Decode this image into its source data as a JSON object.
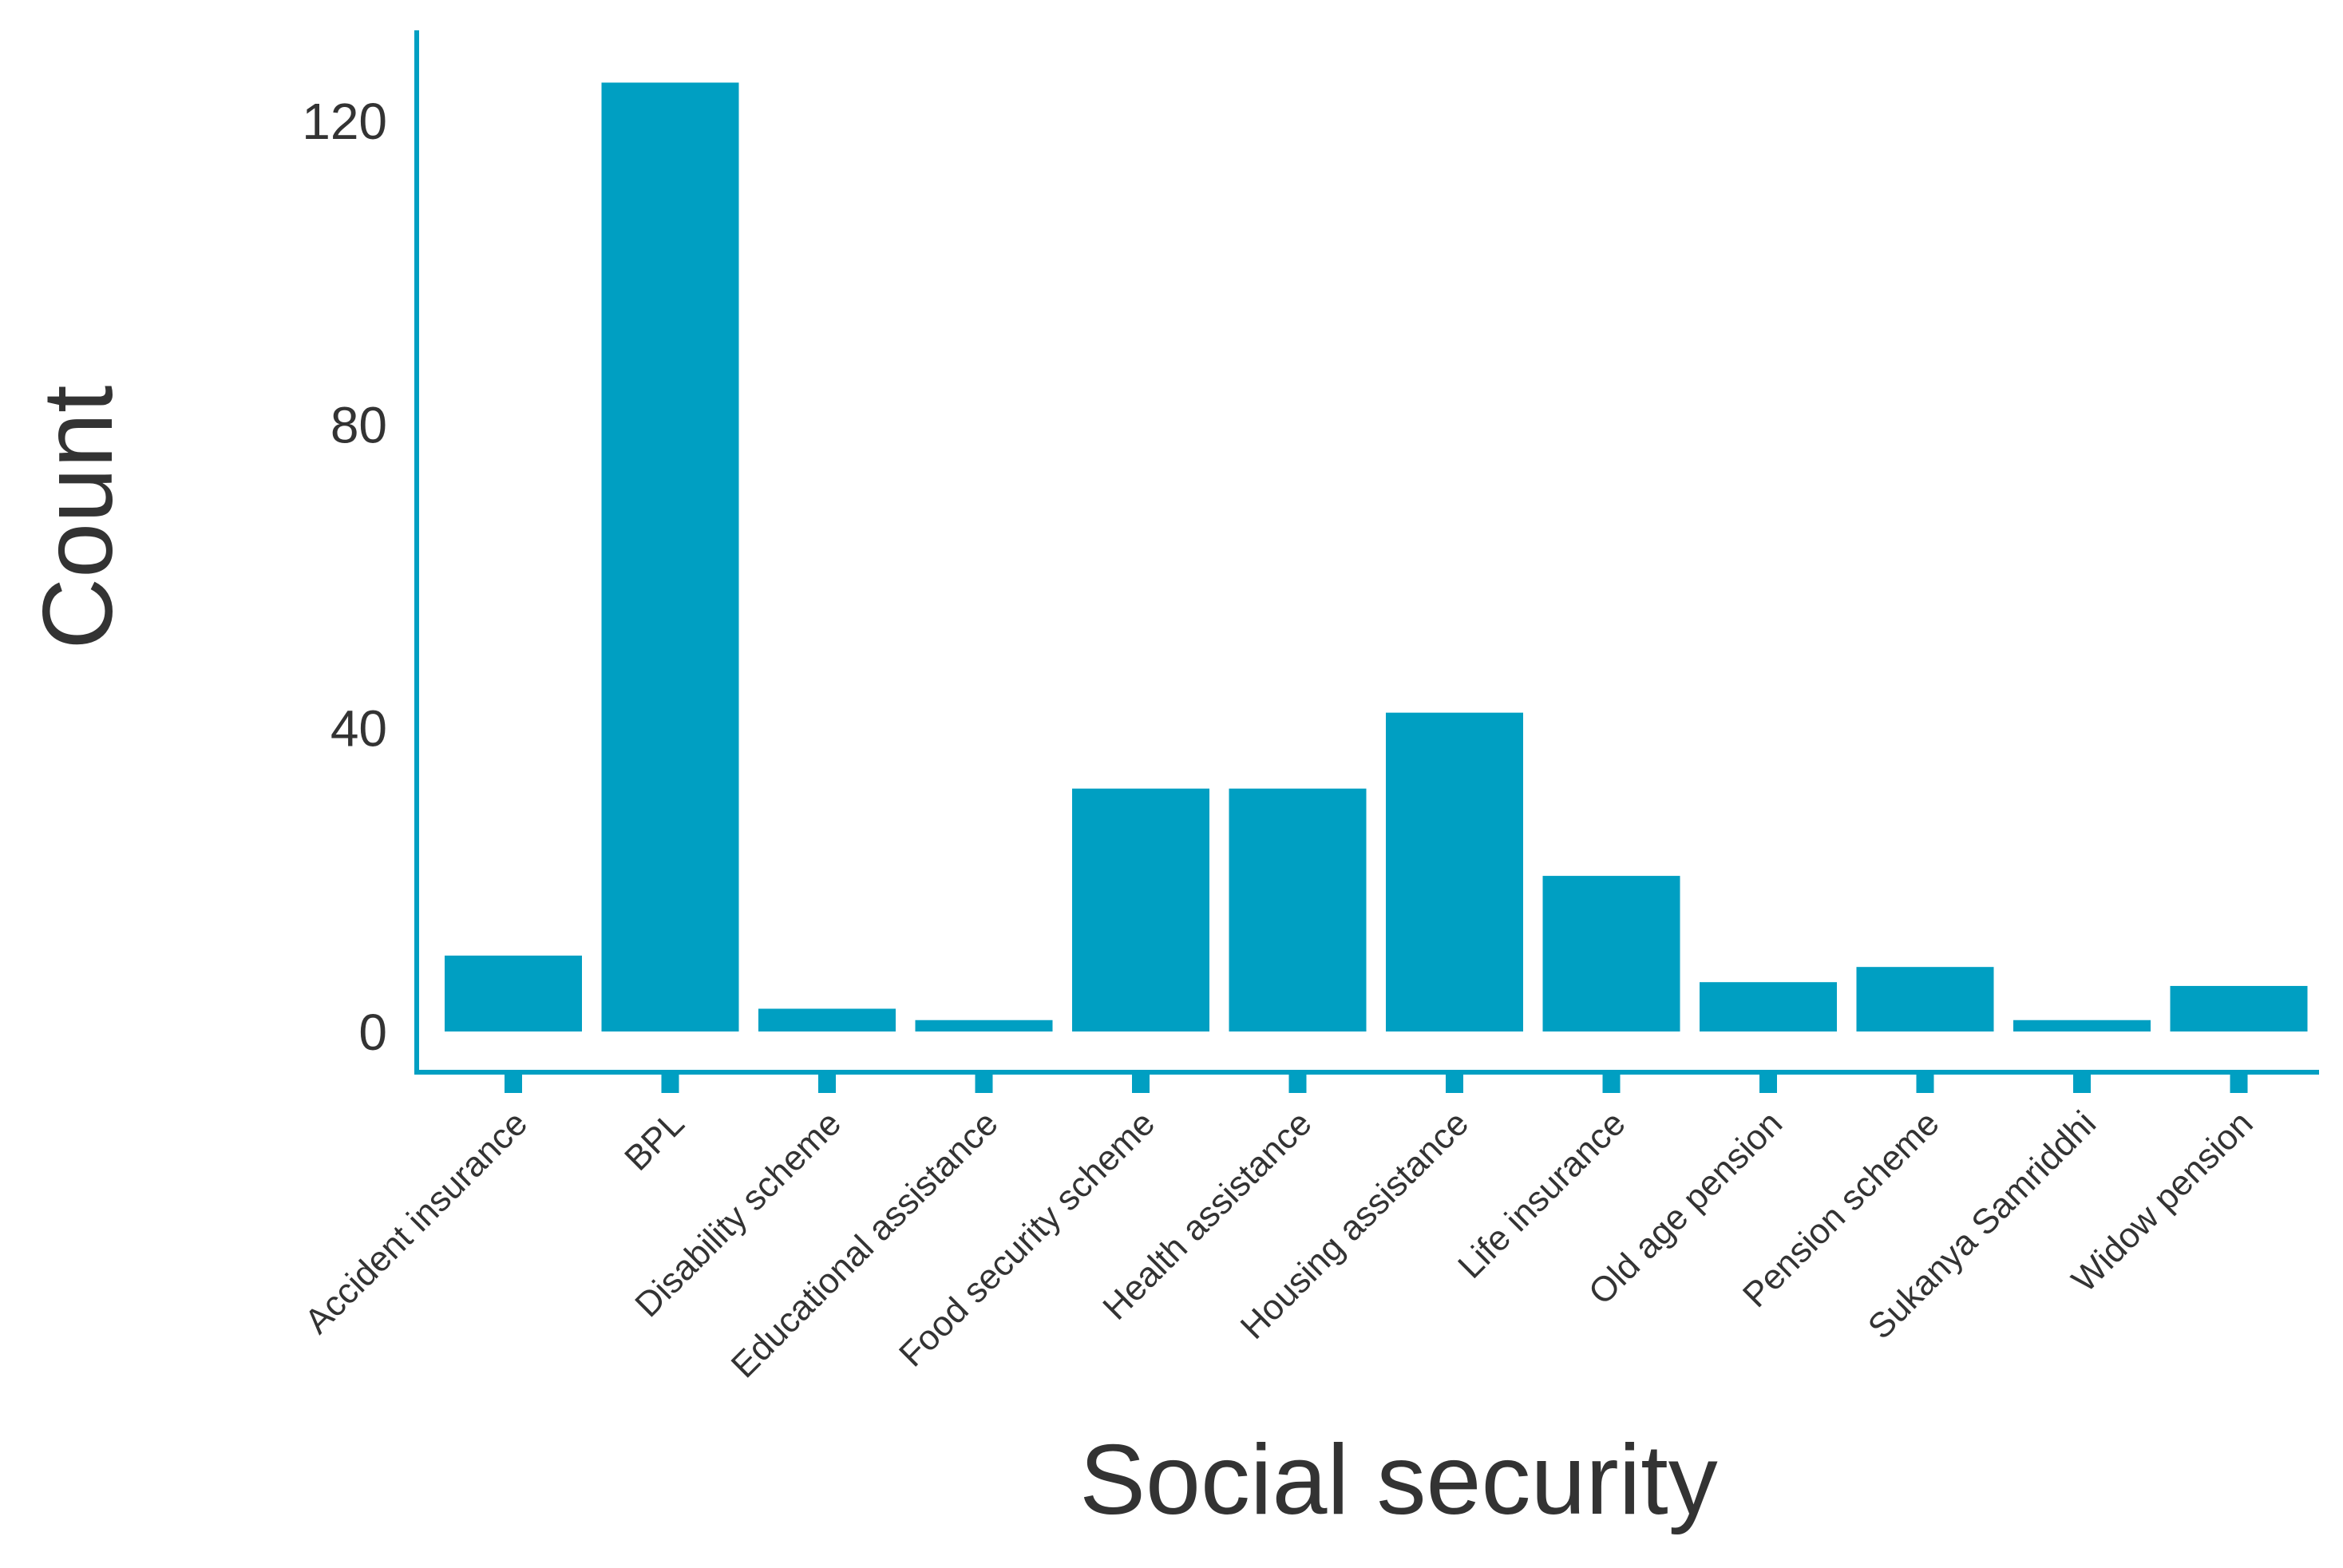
{
  "chart_data": {
    "type": "bar",
    "title": "",
    "xlabel": "Social security",
    "ylabel": "Count",
    "categories": [
      "Accident insurance",
      "BPL",
      "Disability scheme",
      "Educational assistance",
      "Food security scheme",
      "Health assistance",
      "Housing assistance",
      "Life insurance",
      "Old age pension",
      "Pension scheme",
      "Sukanya Samriddhi",
      "Widow pension"
    ],
    "values": [
      10,
      125,
      3,
      1.5,
      32,
      32,
      42,
      20.5,
      6.5,
      8.5,
      1.5,
      6
    ],
    "yticks": [
      0,
      40,
      80,
      120
    ],
    "ylim": [
      0,
      130
    ],
    "grid": false,
    "legend": "none",
    "colors": {
      "bar": "#009FC2",
      "axis": "#009FC2",
      "text": "#333333"
    }
  }
}
